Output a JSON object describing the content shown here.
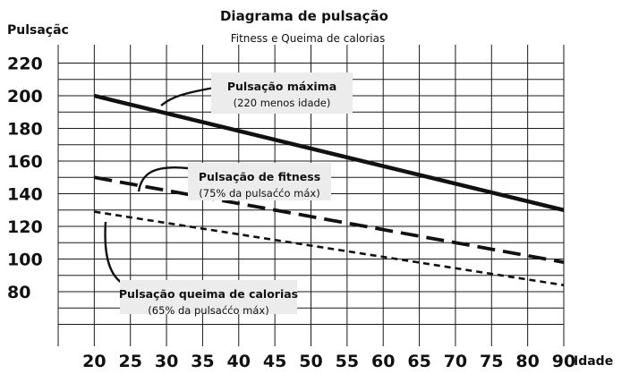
{
  "chart_data": {
    "type": "line",
    "title": "Diagrama de pulsação",
    "subtitle": "Fitness e Queima de calorias",
    "ylabel": "Pulsaçãc",
    "xlabel": "Idade",
    "x": [
      20,
      25,
      30,
      35,
      40,
      45,
      50,
      55,
      60,
      65,
      70,
      75,
      80,
      90
    ],
    "x_ticks": [
      "20",
      "25",
      "30",
      "35",
      "40",
      "45",
      "50",
      "55",
      "60",
      "65",
      "70",
      "75",
      "80",
      "90"
    ],
    "y_ticks": [
      "220",
      "200",
      "180",
      "160",
      "140",
      "120",
      "100",
      "80"
    ],
    "ylim": [
      70,
      225
    ],
    "grid": true,
    "series": [
      {
        "name": "Pulsação máxima",
        "note": "(220 menos idade)",
        "style": "solid",
        "color": "#111111",
        "x": [
          20,
          90
        ],
        "y": [
          200,
          130
        ]
      },
      {
        "name": "Pulsação de fitness",
        "note": "(75% da pulsaććo máx)",
        "style": "long-dash",
        "color": "#111111",
        "x": [
          20,
          90
        ],
        "y": [
          150,
          98
        ]
      },
      {
        "name": "Pulsação queima de calorias",
        "note": "(65% da pulsaććo máx)",
        "style": "short-dash",
        "color": "#111111",
        "x": [
          20,
          90
        ],
        "y": [
          129,
          84
        ]
      }
    ]
  }
}
